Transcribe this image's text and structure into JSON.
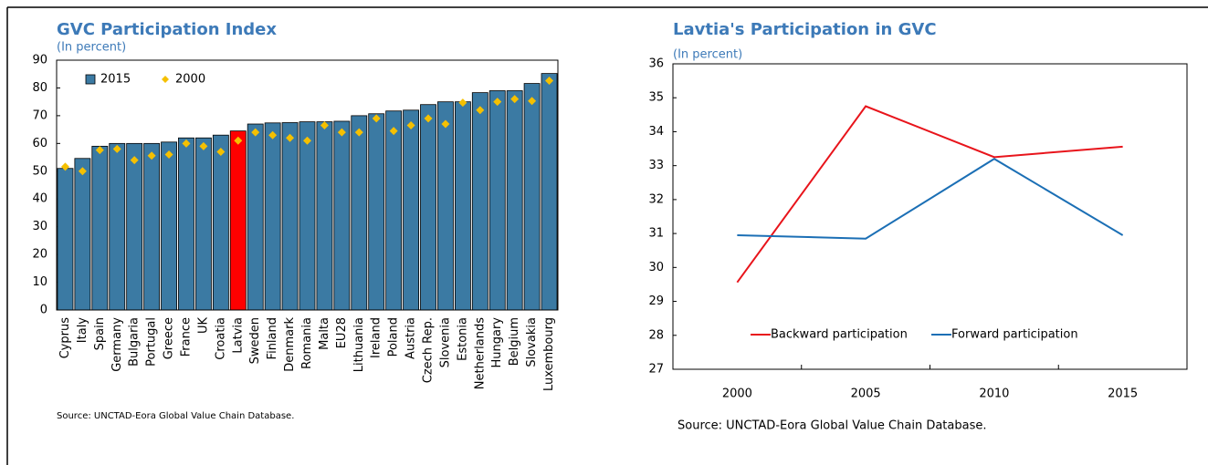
{
  "chart_data": [
    {
      "type": "bar",
      "title": "GVC Participation Index",
      "subtitle": "(In percent)",
      "categories": [
        "Cyprus",
        "Italy",
        "Spain",
        "Germany",
        "Bulgaria",
        "Portugal",
        "Greece",
        "France",
        "UK",
        "Croatia",
        "Latvia",
        "Sweden",
        "Finland",
        "Denmark",
        "Romania",
        "Malta",
        "EU28",
        "Lithuania",
        "Ireland",
        "Poland",
        "Austria",
        "Czech Rep.",
        "Slovenia",
        "Estonia",
        "Netherlands",
        "Hungary",
        "Belgium",
        "Slovakia",
        "Luxembourg"
      ],
      "series": [
        {
          "name": "2015",
          "color": "#3b7aa3",
          "marker": "bar",
          "values": [
            51,
            54.6,
            59,
            60,
            60,
            60,
            60.5,
            62,
            62,
            63,
            64.5,
            67,
            67.4,
            67.5,
            67.8,
            67.8,
            68,
            70,
            70.7,
            71.7,
            72,
            74,
            75,
            75,
            78.3,
            79,
            79,
            81.6,
            85.2
          ]
        },
        {
          "name": "2000",
          "color": "#f5c000",
          "marker": "diamond",
          "values": [
            51.6,
            50,
            57.6,
            58,
            54,
            55.6,
            56,
            60,
            59,
            57,
            61,
            64,
            63,
            62,
            61,
            66.5,
            64,
            64,
            69,
            64.5,
            66.5,
            69,
            67,
            74.7,
            72,
            75,
            76,
            75.3,
            82.6
          ]
        }
      ],
      "highlight_category": "Latvia",
      "highlight_color": "#ff0000",
      "ylim": [
        0,
        90
      ],
      "yticks": [
        0,
        10,
        20,
        30,
        40,
        50,
        60,
        70,
        80,
        90
      ],
      "legend": "upper left",
      "source": "Source: UNCTAD-Eora Global Value Chain Database."
    },
    {
      "type": "line",
      "title": "Lavtia's Participation in GVC",
      "subtitle": "(In percent)",
      "categories": [
        "2000",
        "2005",
        "2010",
        "2015"
      ],
      "series": [
        {
          "name": "Backward participation",
          "color": "#e8141b",
          "values": [
            29.56,
            34.75,
            33.25,
            33.56
          ]
        },
        {
          "name": "Forward participation",
          "color": "#1b6fb5",
          "values": [
            30.95,
            30.85,
            33.2,
            30.95
          ]
        }
      ],
      "ylim": [
        27,
        36
      ],
      "yticks": [
        27,
        28,
        29,
        30,
        31,
        32,
        33,
        34,
        35,
        36
      ],
      "legend": "lower center",
      "source": "Source: UNCTAD-Eora Global Value Chain Database."
    }
  ]
}
